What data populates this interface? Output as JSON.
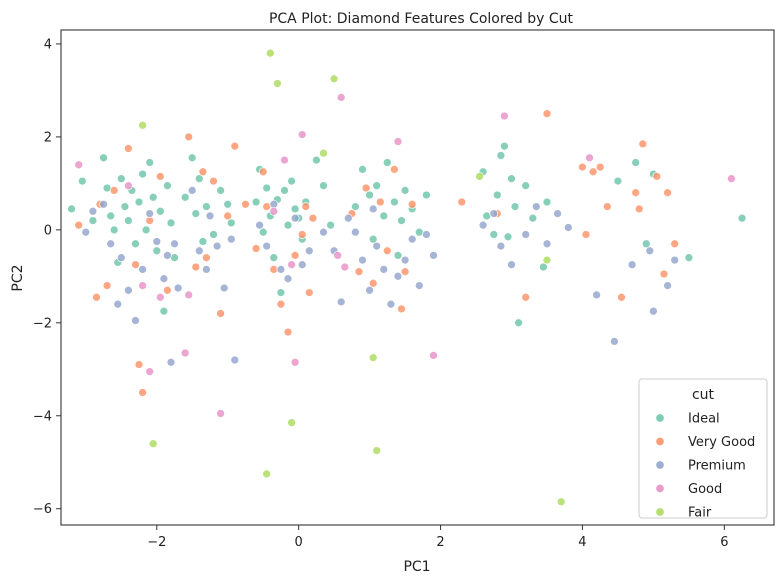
{
  "chart_data": {
    "type": "scatter",
    "title": "PCA Plot: Diamond Features Colored by Cut",
    "xlabel": "PC1",
    "ylabel": "PC2",
    "xlim": [
      -3.35,
      6.7
    ],
    "ylim": [
      -6.35,
      4.3
    ],
    "xticks": [
      -2,
      0,
      2,
      4,
      6
    ],
    "yticks": [
      -6,
      -4,
      -2,
      0,
      2,
      4
    ],
    "grid": false,
    "legend": {
      "title": "cut",
      "placement": "bottom-right"
    },
    "series": [
      {
        "name": "Ideal",
        "color": "#66c2a5",
        "points": [
          [
            -3.2,
            0.45
          ],
          [
            -3.05,
            1.05
          ],
          [
            -2.9,
            0.2
          ],
          [
            -2.75,
            1.55
          ],
          [
            -2.7,
            0.9
          ],
          [
            -2.65,
            0.3
          ],
          [
            -2.6,
            0.0
          ],
          [
            -2.55,
            -0.7
          ],
          [
            -2.5,
            1.1
          ],
          [
            -2.45,
            0.5
          ],
          [
            -2.4,
            0.2
          ],
          [
            -2.35,
            0.85
          ],
          [
            -2.3,
            -0.3
          ],
          [
            -2.25,
            0.6
          ],
          [
            -2.2,
            1.2
          ],
          [
            -2.15,
            0.0
          ],
          [
            -2.1,
            1.45
          ],
          [
            -2.05,
            0.7
          ],
          [
            -2.0,
            -0.45
          ],
          [
            -1.95,
            0.4
          ],
          [
            -1.9,
            -1.75
          ],
          [
            -1.85,
            0.95
          ],
          [
            -1.8,
            0.15
          ],
          [
            -1.75,
            -0.6
          ],
          [
            -1.6,
            0.7
          ],
          [
            -1.5,
            1.55
          ],
          [
            -1.45,
            0.35
          ],
          [
            -1.4,
            1.1
          ],
          [
            -1.35,
            -0.25
          ],
          [
            -1.3,
            0.5
          ],
          [
            -1.2,
            -0.1
          ],
          [
            -1.1,
            0.85
          ],
          [
            -1.0,
            0.55
          ],
          [
            -0.95,
            0.15
          ],
          [
            -0.6,
            0.6
          ],
          [
            -0.55,
            1.3
          ],
          [
            -0.5,
            -0.05
          ],
          [
            -0.45,
            0.9
          ],
          [
            -0.4,
            0.3
          ],
          [
            -0.35,
            -0.6
          ],
          [
            -0.3,
            0.65
          ],
          [
            -0.25,
            -1.35
          ],
          [
            -0.2,
            0.85
          ],
          [
            -0.15,
            0.1
          ],
          [
            -0.1,
            1.05
          ],
          [
            -0.05,
            0.45
          ],
          [
            0.0,
            0.25
          ],
          [
            0.05,
            -0.2
          ],
          [
            0.1,
            0.6
          ],
          [
            0.25,
            1.5
          ],
          [
            0.35,
            0.95
          ],
          [
            0.45,
            0.1
          ],
          [
            0.8,
            0.5
          ],
          [
            0.9,
            1.3
          ],
          [
            1.0,
            0.75
          ],
          [
            1.05,
            -0.2
          ],
          [
            1.1,
            0.95
          ],
          [
            1.2,
            0.3
          ],
          [
            1.25,
            1.45
          ],
          [
            1.35,
            0.6
          ],
          [
            1.4,
            -0.55
          ],
          [
            1.45,
            0.2
          ],
          [
            1.5,
            0.85
          ],
          [
            1.6,
            0.45
          ],
          [
            1.7,
            -0.05
          ],
          [
            1.8,
            0.75
          ],
          [
            2.6,
            1.25
          ],
          [
            2.65,
            0.3
          ],
          [
            2.75,
            -0.1
          ],
          [
            2.8,
            0.75
          ],
          [
            2.85,
            1.6
          ],
          [
            2.9,
            1.8
          ],
          [
            2.95,
            -0.15
          ],
          [
            3.0,
            1.1
          ],
          [
            3.05,
            0.5
          ],
          [
            3.1,
            -2.0
          ],
          [
            3.2,
            0.95
          ],
          [
            3.3,
            0.25
          ],
          [
            3.45,
            -0.8
          ],
          [
            3.5,
            0.6
          ],
          [
            4.5,
            1.05
          ],
          [
            4.75,
            1.45
          ],
          [
            4.9,
            -0.3
          ],
          [
            5.0,
            1.2
          ],
          [
            5.5,
            -0.6
          ],
          [
            6.25,
            0.25
          ]
        ]
      },
      {
        "name": "Very Good",
        "color": "#fc8d62",
        "points": [
          [
            -3.1,
            0.1
          ],
          [
            -2.85,
            -1.45
          ],
          [
            -2.8,
            0.55
          ],
          [
            -2.7,
            -1.2
          ],
          [
            -2.6,
            0.85
          ],
          [
            -2.4,
            1.75
          ],
          [
            -2.3,
            -0.75
          ],
          [
            -2.25,
            -2.9
          ],
          [
            -2.2,
            -3.5
          ],
          [
            -2.1,
            0.2
          ],
          [
            -1.95,
            1.15
          ],
          [
            -1.85,
            -1.3
          ],
          [
            -1.55,
            2.0
          ],
          [
            -1.45,
            -0.8
          ],
          [
            -1.35,
            1.25
          ],
          [
            -1.3,
            -0.6
          ],
          [
            -1.2,
            1.05
          ],
          [
            -1.1,
            -1.8
          ],
          [
            -1.0,
            0.3
          ],
          [
            -0.9,
            1.8
          ],
          [
            -0.75,
            0.55
          ],
          [
            -0.6,
            -0.4
          ],
          [
            -0.5,
            1.25
          ],
          [
            -0.45,
            0.5
          ],
          [
            -0.35,
            -0.85
          ],
          [
            -0.25,
            -1.6
          ],
          [
            -0.15,
            -2.2
          ],
          [
            -0.05,
            -0.55
          ],
          [
            0.05,
            -0.1
          ],
          [
            0.1,
            0.5
          ],
          [
            0.15,
            -1.35
          ],
          [
            0.2,
            0.25
          ],
          [
            0.75,
            0.35
          ],
          [
            0.85,
            -0.9
          ],
          [
            0.95,
            0.9
          ],
          [
            1.05,
            -1.15
          ],
          [
            1.15,
            0.6
          ],
          [
            1.25,
            -0.45
          ],
          [
            1.35,
            1.3
          ],
          [
            1.45,
            -1.7
          ],
          [
            1.5,
            -0.9
          ],
          [
            1.6,
            0.55
          ],
          [
            2.3,
            0.6
          ],
          [
            2.8,
            0.35
          ],
          [
            3.2,
            -1.45
          ],
          [
            3.5,
            2.5
          ],
          [
            4.0,
            1.35
          ],
          [
            4.05,
            -0.1
          ],
          [
            4.15,
            1.25
          ],
          [
            4.25,
            1.35
          ],
          [
            4.35,
            0.5
          ],
          [
            4.55,
            -1.45
          ],
          [
            4.75,
            0.8
          ],
          [
            4.8,
            0.45
          ],
          [
            4.85,
            1.85
          ],
          [
            5.05,
            1.15
          ],
          [
            5.15,
            -0.95
          ],
          [
            5.2,
            0.8
          ],
          [
            5.3,
            -0.3
          ]
        ]
      },
      {
        "name": "Premium",
        "color": "#8da0cb",
        "points": [
          [
            -3.0,
            -0.05
          ],
          [
            -2.9,
            0.4
          ],
          [
            -2.75,
            0.55
          ],
          [
            -2.65,
            -0.3
          ],
          [
            -2.55,
            -1.6
          ],
          [
            -2.5,
            -0.6
          ],
          [
            -2.4,
            -1.3
          ],
          [
            -2.3,
            -1.95
          ],
          [
            -2.2,
            -0.85
          ],
          [
            -2.1,
            0.35
          ],
          [
            -2.0,
            -0.25
          ],
          [
            -1.9,
            -1.05
          ],
          [
            -1.85,
            -0.55
          ],
          [
            -1.8,
            -2.85
          ],
          [
            -1.75,
            -0.3
          ],
          [
            -1.7,
            -1.25
          ],
          [
            -1.5,
            0.85
          ],
          [
            -1.4,
            -0.45
          ],
          [
            -1.3,
            -0.85
          ],
          [
            -1.25,
            0.3
          ],
          [
            -1.15,
            -0.35
          ],
          [
            -1.05,
            -1.25
          ],
          [
            -0.95,
            -0.2
          ],
          [
            -0.9,
            -2.8
          ],
          [
            -0.55,
            0.1
          ],
          [
            -0.45,
            -0.35
          ],
          [
            -0.35,
            0.55
          ],
          [
            -0.25,
            -0.85
          ],
          [
            -0.15,
            -1.05
          ],
          [
            -0.05,
            0.25
          ],
          [
            0.05,
            -0.75
          ],
          [
            0.15,
            -0.45
          ],
          [
            0.35,
            -0.05
          ],
          [
            0.5,
            -0.45
          ],
          [
            0.6,
            -1.55
          ],
          [
            0.7,
            0.25
          ],
          [
            0.8,
            -0.05
          ],
          [
            0.9,
            -0.65
          ],
          [
            1.0,
            -1.3
          ],
          [
            1.05,
            0.45
          ],
          [
            1.1,
            -0.35
          ],
          [
            1.2,
            -0.85
          ],
          [
            1.3,
            -1.6
          ],
          [
            1.4,
            -1.0
          ],
          [
            1.5,
            -0.65
          ],
          [
            1.6,
            -0.2
          ],
          [
            1.7,
            -1.2
          ],
          [
            1.8,
            -0.1
          ],
          [
            1.9,
            -0.55
          ],
          [
            2.6,
            0.1
          ],
          [
            2.75,
            0.35
          ],
          [
            2.85,
            -0.35
          ],
          [
            3.0,
            -0.75
          ],
          [
            3.2,
            -0.1
          ],
          [
            3.35,
            0.5
          ],
          [
            3.5,
            -0.3
          ],
          [
            3.65,
            0.35
          ],
          [
            3.8,
            0.05
          ],
          [
            4.2,
            -1.4
          ],
          [
            4.45,
            -2.4
          ],
          [
            4.7,
            -0.75
          ],
          [
            4.95,
            -0.45
          ],
          [
            5.0,
            -1.75
          ],
          [
            5.2,
            -1.2
          ],
          [
            5.3,
            -0.65
          ]
        ]
      },
      {
        "name": "Good",
        "color": "#e78ac3",
        "points": [
          [
            -3.1,
            1.4
          ],
          [
            -2.4,
            0.95
          ],
          [
            -2.2,
            -1.2
          ],
          [
            -2.1,
            -3.05
          ],
          [
            -1.95,
            -1.45
          ],
          [
            -1.55,
            -1.4
          ],
          [
            -1.6,
            -2.65
          ],
          [
            -1.1,
            -3.95
          ],
          [
            -0.35,
            0.4
          ],
          [
            -0.2,
            1.5
          ],
          [
            0.05,
            2.05
          ],
          [
            -0.05,
            -2.85
          ],
          [
            -0.1,
            -0.75
          ],
          [
            0.6,
            2.85
          ],
          [
            0.55,
            -0.55
          ],
          [
            0.65,
            -0.8
          ],
          [
            1.4,
            1.9
          ],
          [
            1.9,
            -2.7
          ],
          [
            2.9,
            2.45
          ],
          [
            4.1,
            1.55
          ],
          [
            6.1,
            1.1
          ]
        ]
      },
      {
        "name": "Fair",
        "color": "#a6d854",
        "points": [
          [
            -2.2,
            2.25
          ],
          [
            -2.05,
            -4.6
          ],
          [
            -0.4,
            3.8
          ],
          [
            -0.3,
            3.15
          ],
          [
            0.35,
            1.65
          ],
          [
            0.5,
            3.25
          ],
          [
            -0.45,
            -5.25
          ],
          [
            -0.1,
            -4.15
          ],
          [
            1.05,
            -2.75
          ],
          [
            1.1,
            -4.75
          ],
          [
            2.55,
            1.15
          ],
          [
            3.5,
            -0.65
          ],
          [
            3.7,
            -5.85
          ]
        ]
      }
    ]
  }
}
